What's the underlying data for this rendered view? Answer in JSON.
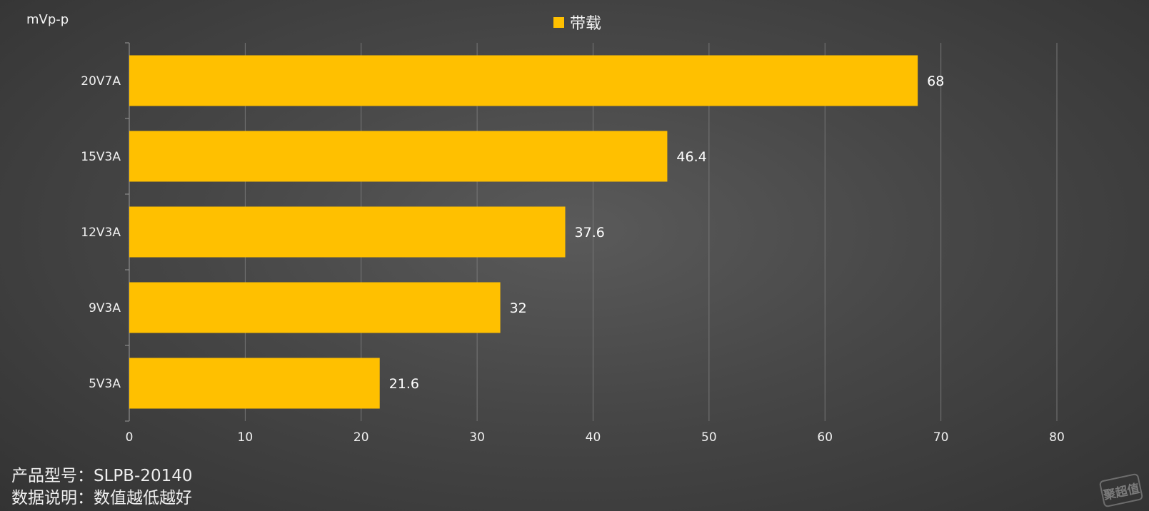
{
  "unit_label": "mVp-p",
  "legend": {
    "label": "带载"
  },
  "notes": {
    "model": "产品型号：SLPB-20140",
    "description": "数据说明：数值越低越好"
  },
  "watermark": "聚超值",
  "chart_data": {
    "type": "bar",
    "orientation": "horizontal",
    "categories": [
      "20V7A",
      "15V3A",
      "12V3A",
      "9V3A",
      "5V3A"
    ],
    "series": [
      {
        "name": "带载",
        "values": [
          68,
          46.4,
          37.6,
          32,
          21.6
        ],
        "color": "#FFC000"
      }
    ],
    "xlim": [
      0,
      80
    ],
    "xticks": [
      0,
      10,
      20,
      30,
      40,
      50,
      60,
      70,
      80
    ],
    "grid": true,
    "legend_position": "top-center",
    "data_labels": true
  }
}
